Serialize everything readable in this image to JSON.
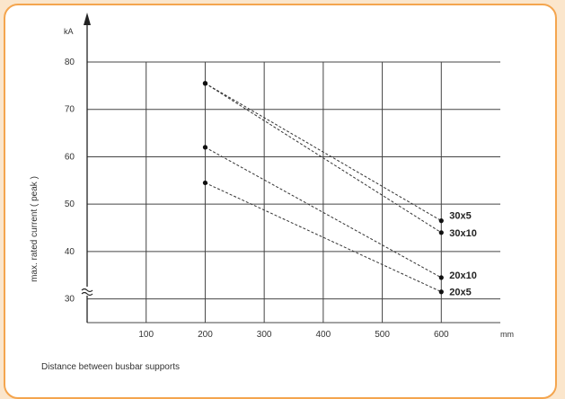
{
  "chart_data": {
    "type": "line",
    "xlabel": "Distance between busbar supports",
    "ylabel": "max. rated current ( peak )",
    "x_unit": "mm",
    "y_unit": "kA",
    "xlim": [
      0,
      700
    ],
    "ylim": [
      25,
      80
    ],
    "x_ticks": [
      100,
      200,
      300,
      400,
      500,
      600
    ],
    "y_ticks": [
      30,
      40,
      50,
      60,
      70,
      80
    ],
    "axis_break": true,
    "grid": true,
    "line_style": "dashed",
    "series": [
      {
        "name": "30x5",
        "x": [
          200,
          600
        ],
        "y": [
          75.5,
          46.5
        ]
      },
      {
        "name": "30x10",
        "x": [
          200,
          600
        ],
        "y": [
          75.5,
          44
        ]
      },
      {
        "name": "20x10",
        "x": [
          200,
          600
        ],
        "y": [
          62,
          34.5
        ]
      },
      {
        "name": "20x5",
        "x": [
          200,
          600
        ],
        "y": [
          54.5,
          31.5
        ]
      }
    ]
  }
}
